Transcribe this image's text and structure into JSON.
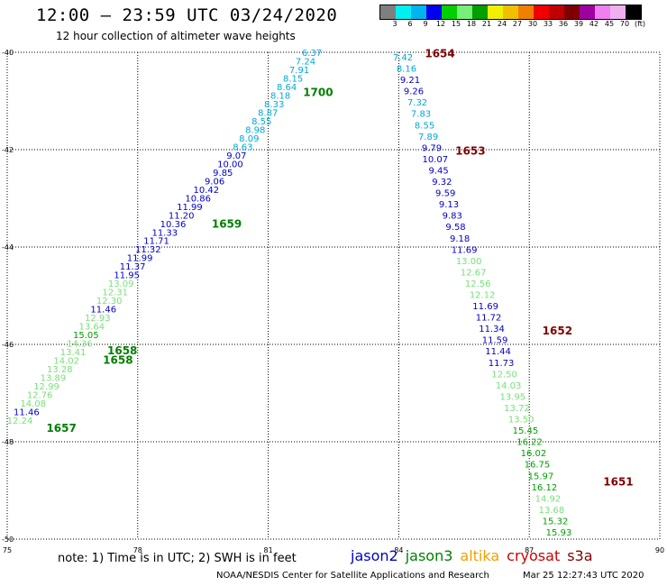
{
  "title": "12:00 – 23:59 UTC 03/24/2020",
  "subtitle": "12 hour collection of altimeter wave heights",
  "legend": {
    "colors": [
      "#7f7f7f",
      "#00f0f0",
      "#00b4f0",
      "#0000f0",
      "#00d000",
      "#76f076",
      "#00a000",
      "#f0f000",
      "#f0c000",
      "#f08000",
      "#f00000",
      "#c00000",
      "#800000",
      "#a000a0",
      "#f080f0",
      "#f0b0f0",
      "#000000"
    ],
    "labels": [
      "3",
      "6",
      "9",
      "12",
      "15",
      "18",
      "21",
      "24",
      "27",
      "30",
      "33",
      "36",
      "39",
      "42",
      "45",
      "70",
      "(ft)"
    ]
  },
  "map": {
    "lon_range": [
      75,
      90
    ],
    "lat_range": [
      -50,
      -40
    ],
    "lon_ticks": [
      "75",
      "78",
      "81",
      "84",
      "87",
      "90"
    ],
    "lat_ticks": [
      "-40",
      "-42",
      "-44",
      "-46",
      "-48",
      "-50"
    ],
    "track_colors": {
      "jason2": "#0000c8",
      "jason3": "#008000",
      "altika": "#f0a000",
      "cryosat": "#d00000",
      "s3a": "#800000"
    },
    "value_colors": {
      "cyan": "#00a8d8",
      "blue": "#0000c8",
      "light_green": "#78e078",
      "green": "#00a000"
    },
    "passes": [
      {
        "time": "1700",
        "sat": "jason3",
        "lon": 81.8,
        "lat": -40.9
      },
      {
        "time": "1659",
        "sat": "jason3",
        "lon": 79.7,
        "lat": -43.6
      },
      {
        "time": "1658",
        "sat": "jason3",
        "lon": 77.3,
        "lat": -46.2
      },
      {
        "time": "1658",
        "sat": "jason3",
        "lon": 77.2,
        "lat": -46.4
      },
      {
        "time": "1657",
        "sat": "jason3",
        "lon": 75.9,
        "lat": -47.8
      },
      {
        "time": "1654",
        "sat": "s3a",
        "lon": 84.6,
        "lat": -40.1
      },
      {
        "time": "1653",
        "sat": "s3a",
        "lon": 85.3,
        "lat": -42.1
      },
      {
        "time": "1652",
        "sat": "s3a",
        "lon": 87.3,
        "lat": -45.8
      },
      {
        "time": "1651",
        "sat": "s3a",
        "lon": 88.7,
        "lat": -48.9
      }
    ],
    "track_west": [
      {
        "v": "6.37",
        "c": "cyan"
      },
      {
        "v": "7.24",
        "c": "cyan"
      },
      {
        "v": "7.91",
        "c": "cyan"
      },
      {
        "v": "8.15",
        "c": "cyan"
      },
      {
        "v": "8.64",
        "c": "cyan"
      },
      {
        "v": "8.18",
        "c": "cyan"
      },
      {
        "v": "8.33",
        "c": "cyan"
      },
      {
        "v": "8.87",
        "c": "cyan"
      },
      {
        "v": "8.55",
        "c": "cyan"
      },
      {
        "v": "8.98",
        "c": "cyan"
      },
      {
        "v": "8.09",
        "c": "cyan"
      },
      {
        "v": "8.63",
        "c": "cyan"
      },
      {
        "v": "9.07",
        "c": "blue"
      },
      {
        "v": "10.00",
        "c": "blue"
      },
      {
        "v": "9.85",
        "c": "blue"
      },
      {
        "v": "9.06",
        "c": "blue"
      },
      {
        "v": "10.42",
        "c": "blue"
      },
      {
        "v": "10.86",
        "c": "blue"
      },
      {
        "v": "11.99",
        "c": "blue"
      },
      {
        "v": "11.20",
        "c": "blue"
      },
      {
        "v": "10.36",
        "c": "blue"
      },
      {
        "v": "11.33",
        "c": "blue"
      },
      {
        "v": "11.71",
        "c": "blue"
      },
      {
        "v": "11.32",
        "c": "blue"
      },
      {
        "v": "11.99",
        "c": "blue"
      },
      {
        "v": "11.37",
        "c": "blue"
      },
      {
        "v": "11.95",
        "c": "blue"
      },
      {
        "v": "13.09",
        "c": "light_green"
      },
      {
        "v": "12.31",
        "c": "light_green"
      },
      {
        "v": "12.30",
        "c": "light_green"
      },
      {
        "v": "11.46",
        "c": "blue"
      },
      {
        "v": "12.93",
        "c": "light_green"
      },
      {
        "v": "13.64",
        "c": "light_green"
      },
      {
        "v": "15.05",
        "c": "green"
      },
      {
        "v": "14.36",
        "c": "light_green"
      },
      {
        "v": "13.41",
        "c": "light_green"
      },
      {
        "v": "14.02",
        "c": "light_green"
      },
      {
        "v": "13.28",
        "c": "light_green"
      },
      {
        "v": "13.89",
        "c": "light_green"
      },
      {
        "v": "12.99",
        "c": "light_green"
      },
      {
        "v": "12.76",
        "c": "light_green"
      },
      {
        "v": "14.08",
        "c": "light_green"
      },
      {
        "v": "11.46",
        "c": "blue"
      },
      {
        "v": "12.24",
        "c": "light_green"
      }
    ],
    "track_east": [
      {
        "v": "7.42",
        "c": "cyan"
      },
      {
        "v": "8.16",
        "c": "cyan"
      },
      {
        "v": "9.21",
        "c": "blue"
      },
      {
        "v": "9.26",
        "c": "blue"
      },
      {
        "v": "7.32",
        "c": "cyan"
      },
      {
        "v": "7.83",
        "c": "cyan"
      },
      {
        "v": "8.55",
        "c": "cyan"
      },
      {
        "v": "7.89",
        "c": "cyan"
      },
      {
        "v": "9.79",
        "c": "blue"
      },
      {
        "v": "10.07",
        "c": "blue"
      },
      {
        "v": "9.45",
        "c": "blue"
      },
      {
        "v": "9.32",
        "c": "blue"
      },
      {
        "v": "9.59",
        "c": "blue"
      },
      {
        "v": "9.13",
        "c": "blue"
      },
      {
        "v": "9.83",
        "c": "blue"
      },
      {
        "v": "9.58",
        "c": "blue"
      },
      {
        "v": "9.18",
        "c": "blue"
      },
      {
        "v": "11.69",
        "c": "blue"
      },
      {
        "v": "13.00",
        "c": "light_green"
      },
      {
        "v": "12.67",
        "c": "light_green"
      },
      {
        "v": "12.56",
        "c": "light_green"
      },
      {
        "v": "12.12",
        "c": "light_green"
      },
      {
        "v": "11.69",
        "c": "blue"
      },
      {
        "v": "11.72",
        "c": "blue"
      },
      {
        "v": "11.34",
        "c": "blue"
      },
      {
        "v": "11.59",
        "c": "blue"
      },
      {
        "v": "11.44",
        "c": "blue"
      },
      {
        "v": "11.73",
        "c": "blue"
      },
      {
        "v": "12.50",
        "c": "light_green"
      },
      {
        "v": "14.03",
        "c": "light_green"
      },
      {
        "v": "13.95",
        "c": "light_green"
      },
      {
        "v": "13.72",
        "c": "light_green"
      },
      {
        "v": "13.50",
        "c": "light_green"
      },
      {
        "v": "15.45",
        "c": "green"
      },
      {
        "v": "16.22",
        "c": "green"
      },
      {
        "v": "16.02",
        "c": "green"
      },
      {
        "v": "16.75",
        "c": "green"
      },
      {
        "v": "15.97",
        "c": "green"
      },
      {
        "v": "16.12",
        "c": "green"
      },
      {
        "v": "14.92",
        "c": "light_green"
      },
      {
        "v": "13.68",
        "c": "light_green"
      },
      {
        "v": "15.32",
        "c": "green"
      },
      {
        "v": "15.93",
        "c": "green"
      }
    ]
  },
  "note": "note: 1) Time is in UTC; 2) SWH is in feet",
  "satellites": [
    {
      "name": "jason2",
      "color": "#0000c8"
    },
    {
      "name": "jason3",
      "color": "#008000"
    },
    {
      "name": "altika",
      "color": "#f0a000"
    },
    {
      "name": "cryosat",
      "color": "#d00000"
    },
    {
      "name": "s3a",
      "color": "#800000"
    }
  ],
  "footer": {
    "credit": "NOAA/NESDIS Center for Satellite Applications and Research",
    "timestamp": "Mar 25 12:27:43 UTC 2020"
  }
}
